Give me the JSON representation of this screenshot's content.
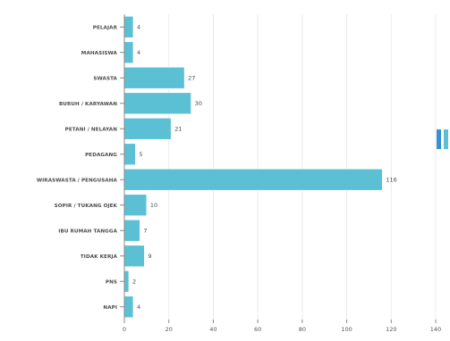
{
  "chart_data": {
    "type": "bar",
    "orientation": "horizontal",
    "categories": [
      "PELAJAR",
      "MAHASISWA",
      "SWASTA",
      "BURUH / KARYAWAN",
      "PETANI / NELAYAN",
      "PEDAGANG",
      "WIRASWASTA / PENGUSAHA",
      "SOPIR / TUKANG OJEK",
      "IBU RUMAH TANGGA",
      "TIDAK KERJA",
      "PNS",
      "NAPI"
    ],
    "values": [
      4,
      4,
      27,
      30,
      21,
      5,
      116,
      10,
      7,
      9,
      2,
      4
    ],
    "xticks": [
      0,
      20,
      40,
      60,
      80,
      100,
      120,
      140
    ],
    "xlim": [
      0,
      140
    ],
    "title": "",
    "xlabel": "",
    "ylabel": "",
    "grid": true,
    "bar_color": "#5bc0d4"
  },
  "side_mark": {
    "colors": [
      "#3a8fd9",
      "#5bc0d4"
    ]
  }
}
